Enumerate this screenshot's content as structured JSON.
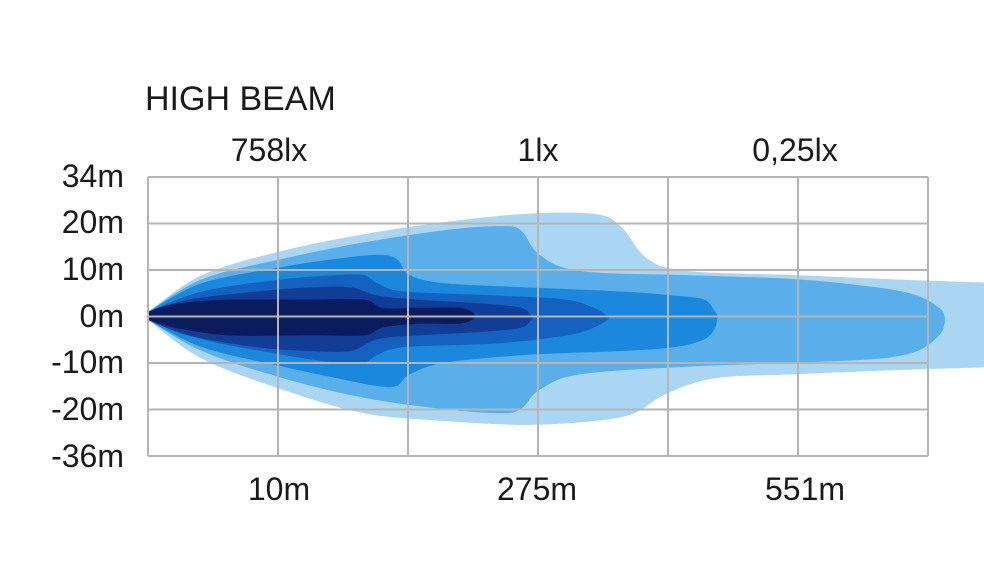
{
  "chart_data": {
    "type": "area",
    "title": "HIGH BEAM",
    "top_labels": [
      "758lx",
      "1lx",
      "0,25lx"
    ],
    "x_tick_labels": [
      "10m",
      "275m",
      "551m"
    ],
    "y_tick_labels": [
      "34m",
      "20m",
      "10m",
      "0m",
      "-10m",
      "-20m",
      "-36m"
    ],
    "grid": true,
    "series": [
      {
        "label": "0,25lx",
        "color": "#aad6f4",
        "upper": [
          [
            0,
            1
          ],
          [
            20,
            10
          ],
          [
            50,
            16
          ],
          [
            80,
            20
          ],
          [
            110,
            23
          ],
          [
            140,
            25
          ],
          [
            165,
            25
          ],
          [
            175,
            22
          ],
          [
            185,
            14
          ],
          [
            200,
            11
          ],
          [
            240,
            10
          ],
          [
            275,
            9
          ],
          [
            320,
            8
          ],
          [
            380,
            7
          ],
          [
            420,
            6
          ],
          [
            450,
            4
          ],
          [
            466,
            2
          ],
          [
            470,
            0
          ]
        ],
        "lower": [
          [
            0,
            -1
          ],
          [
            20,
            -11
          ],
          [
            50,
            -19
          ],
          [
            80,
            -25
          ],
          [
            110,
            -27
          ],
          [
            140,
            -28
          ],
          [
            165,
            -27
          ],
          [
            180,
            -25
          ],
          [
            192,
            -20
          ],
          [
            210,
            -16
          ],
          [
            240,
            -15
          ],
          [
            275,
            -14
          ],
          [
            320,
            -13
          ],
          [
            380,
            -12
          ],
          [
            420,
            -10
          ],
          [
            450,
            -8
          ],
          [
            466,
            -5
          ],
          [
            470,
            -2
          ]
        ]
      },
      {
        "label": "",
        "color": "#5aaeea",
        "upper": [
          [
            0,
            1
          ],
          [
            20,
            9
          ],
          [
            50,
            14
          ],
          [
            80,
            18
          ],
          [
            110,
            21
          ],
          [
            130,
            22
          ],
          [
            138,
            21
          ],
          [
            145,
            15
          ],
          [
            160,
            11
          ],
          [
            200,
            10
          ],
          [
            240,
            9
          ],
          [
            270,
            7
          ],
          [
            285,
            5
          ],
          [
            293,
            2
          ],
          [
            295,
            0
          ]
        ],
        "lower": [
          [
            0,
            -1
          ],
          [
            20,
            -9
          ],
          [
            50,
            -16
          ],
          [
            80,
            -21
          ],
          [
            110,
            -24
          ],
          [
            130,
            -25
          ],
          [
            138,
            -24
          ],
          [
            145,
            -19
          ],
          [
            160,
            -15
          ],
          [
            200,
            -13
          ],
          [
            240,
            -12
          ],
          [
            270,
            -11
          ],
          [
            285,
            -9
          ],
          [
            293,
            -5
          ],
          [
            295,
            -2
          ]
        ]
      },
      {
        "label": "",
        "color": "#1b87dd",
        "upper": [
          [
            0,
            1
          ],
          [
            20,
            8
          ],
          [
            50,
            12
          ],
          [
            70,
            14
          ],
          [
            85,
            15
          ],
          [
            92,
            14
          ],
          [
            97,
            10
          ],
          [
            110,
            8
          ],
          [
            140,
            7
          ],
          [
            175,
            6
          ],
          [
            195,
            5
          ],
          [
            206,
            4
          ],
          [
            210,
            1
          ],
          [
            211,
            0
          ]
        ],
        "lower": [
          [
            0,
            -1
          ],
          [
            20,
            -8
          ],
          [
            50,
            -13
          ],
          [
            70,
            -16
          ],
          [
            85,
            -18
          ],
          [
            92,
            -18
          ],
          [
            97,
            -15
          ],
          [
            110,
            -12
          ],
          [
            140,
            -10
          ],
          [
            175,
            -9
          ],
          [
            195,
            -8
          ],
          [
            206,
            -6
          ],
          [
            210,
            -3
          ],
          [
            211,
            0
          ]
        ]
      },
      {
        "label": "",
        "color": "#1561bf",
        "upper": [
          [
            0,
            1
          ],
          [
            20,
            6
          ],
          [
            50,
            9
          ],
          [
            70,
            10
          ],
          [
            80,
            10
          ],
          [
            85,
            8
          ],
          [
            95,
            6
          ],
          [
            130,
            5
          ],
          [
            155,
            4
          ],
          [
            165,
            2
          ],
          [
            170,
            0
          ]
        ],
        "lower": [
          [
            0,
            -1
          ],
          [
            20,
            -6
          ],
          [
            50,
            -10
          ],
          [
            70,
            -12
          ],
          [
            80,
            -12
          ],
          [
            85,
            -10
          ],
          [
            95,
            -8
          ],
          [
            130,
            -7
          ],
          [
            155,
            -5
          ],
          [
            165,
            -3
          ],
          [
            170,
            -1
          ]
        ]
      },
      {
        "label": "",
        "color": "#123d96",
        "upper": [
          [
            0,
            1
          ],
          [
            15,
            4
          ],
          [
            40,
            6
          ],
          [
            60,
            7
          ],
          [
            75,
            7
          ],
          [
            85,
            5
          ],
          [
            100,
            4
          ],
          [
            125,
            3
          ],
          [
            138,
            2
          ],
          [
            142,
            0
          ]
        ],
        "lower": [
          [
            0,
            -1
          ],
          [
            15,
            -5
          ],
          [
            40,
            -8
          ],
          [
            60,
            -9
          ],
          [
            75,
            -9
          ],
          [
            85,
            -6
          ],
          [
            100,
            -5
          ],
          [
            125,
            -4
          ],
          [
            138,
            -3
          ],
          [
            142,
            -1
          ]
        ]
      },
      {
        "label": "758lx",
        "color": "#0a1c5e",
        "upper": [
          [
            0,
            1
          ],
          [
            10,
            3
          ],
          [
            30,
            4
          ],
          [
            60,
            4
          ],
          [
            80,
            4
          ],
          [
            87,
            2
          ],
          [
            100,
            2
          ],
          [
            115,
            2
          ],
          [
            120,
            1
          ],
          [
            121,
            0
          ]
        ],
        "lower": [
          [
            0,
            -1
          ],
          [
            10,
            -3
          ],
          [
            30,
            -5
          ],
          [
            60,
            -5
          ],
          [
            80,
            -5
          ],
          [
            87,
            -3
          ],
          [
            100,
            -2
          ],
          [
            115,
            -2
          ],
          [
            120,
            -1
          ],
          [
            121,
            0
          ]
        ]
      }
    ]
  }
}
